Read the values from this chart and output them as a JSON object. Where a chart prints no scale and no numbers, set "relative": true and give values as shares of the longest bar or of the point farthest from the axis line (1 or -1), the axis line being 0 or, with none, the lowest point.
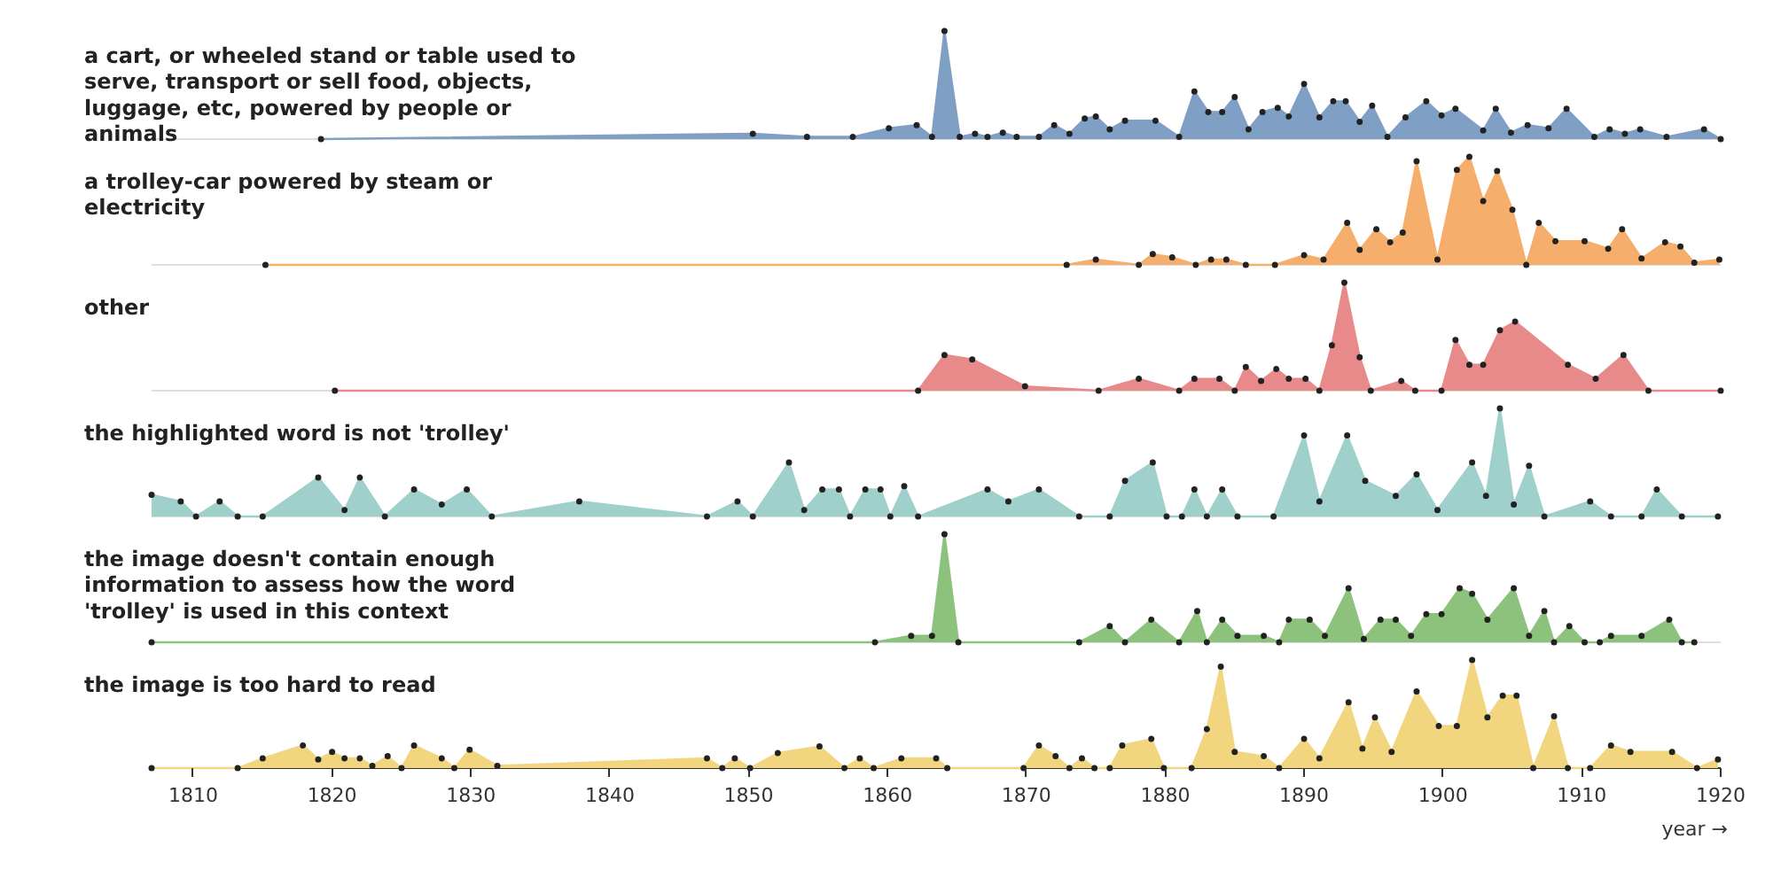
{
  "chart_data": [
    {
      "type": "area",
      "title": "a cart, or wheeled stand or table used to serve, transport or sell food, objects, luggage, etc, powered by people or animals",
      "relative": true,
      "color": "#7f9fc4",
      "marker": "circle",
      "tick_labels": false,
      "xlim": [
        1807,
        1920
      ],
      "x": [
        1819.2,
        1850.3,
        1854.2,
        1857.5,
        1860.1,
        1862.1,
        1863.2,
        1864.1,
        1865.2,
        1866.3,
        1867.2,
        1868.3,
        1869.3,
        1870.9,
        1872.0,
        1873.1,
        1874.2,
        1875.0,
        1876.0,
        1877.1,
        1879.3,
        1881.0,
        1882.1,
        1883.1,
        1884.1,
        1885.0,
        1886.0,
        1887.0,
        1888.1,
        1888.9,
        1890.0,
        1891.1,
        1892.1,
        1893.0,
        1894.0,
        1894.9,
        1896.0,
        1897.3,
        1898.8,
        1899.9,
        1900.9,
        1902.9,
        1903.8,
        1904.9,
        1906.1,
        1907.6,
        1908.9,
        1910.9,
        1912.0,
        1913.1,
        1914.2,
        1916.1,
        1918.8,
        1920
      ],
      "values": [
        0,
        0.05,
        0.02,
        0.02,
        0.1,
        0.13,
        0.02,
        1,
        0.02,
        0.05,
        0.02,
        0.06,
        0.02,
        0.02,
        0.13,
        0.05,
        0.19,
        0.21,
        0.09,
        0.17,
        0.17,
        0.02,
        0.44,
        0.25,
        0.25,
        0.39,
        0.09,
        0.25,
        0.29,
        0.21,
        0.51,
        0.2,
        0.35,
        0.35,
        0.16,
        0.31,
        0.02,
        0.2,
        0.35,
        0.22,
        0.28,
        0.08,
        0.28,
        0.06,
        0.13,
        0.1,
        0.28,
        0.02,
        0.09,
        0.05,
        0.09,
        0.02,
        0.09,
        0
      ]
    },
    {
      "type": "area",
      "title": "a trolley-car powered by steam or electricity",
      "relative": true,
      "color": "#f5ae6b",
      "marker": "circle",
      "tick_labels": false,
      "xlim": [
        1807,
        1920
      ],
      "x": [
        1815.2,
        1872.9,
        1875.0,
        1878.1,
        1879.1,
        1880.5,
        1882.2,
        1883.3,
        1884.4,
        1885.8,
        1887.9,
        1890.0,
        1891.4,
        1893.1,
        1894.0,
        1895.2,
        1896.2,
        1897.1,
        1898.1,
        1899.6,
        1901.0,
        1901.9,
        1902.9,
        1903.9,
        1905.0,
        1906.0,
        1906.9,
        1908.1,
        1910.2,
        1911.9,
        1912.9,
        1914.3,
        1916.0,
        1917.1,
        1918.1,
        1919.9
      ],
      "values": [
        0,
        0,
        0.05,
        0,
        0.1,
        0.07,
        0,
        0.05,
        0.05,
        0,
        0,
        0.09,
        0.05,
        0.39,
        0.14,
        0.33,
        0.21,
        0.3,
        0.96,
        0.05,
        0.88,
        1,
        0.59,
        0.87,
        0.51,
        0,
        0.39,
        0.22,
        0.22,
        0.15,
        0.33,
        0.06,
        0.21,
        0.17,
        0.02,
        0.05
      ]
    },
    {
      "type": "area",
      "title": "other",
      "relative": true,
      "color": "#e88a8a",
      "marker": "circle",
      "tick_labels": false,
      "xlim": [
        1807,
        1920
      ],
      "x": [
        1820.2,
        1862.2,
        1864.1,
        1866.1,
        1869.9,
        1875.2,
        1878.1,
        1881.0,
        1882.1,
        1883.9,
        1885.0,
        1885.8,
        1886.9,
        1888.0,
        1888.9,
        1890.1,
        1891.1,
        1892.0,
        1892.9,
        1894.0,
        1894.8,
        1897.0,
        1898.0,
        1899.9,
        1900.9,
        1901.9,
        1902.9,
        1904.1,
        1905.2,
        1909.0,
        1911.0,
        1913.0,
        1914.8,
        1920
      ],
      "values": [
        0,
        0,
        0.33,
        0.29,
        0.04,
        0,
        0.11,
        0,
        0.11,
        0.11,
        0,
        0.22,
        0.09,
        0.2,
        0.11,
        0.11,
        0,
        0.42,
        1,
        0.31,
        0,
        0.09,
        0,
        0,
        0.47,
        0.24,
        0.24,
        0.56,
        0.64,
        0.24,
        0.11,
        0.33,
        0,
        0
      ]
    },
    {
      "type": "area",
      "title": "the highlighted word is not 'trolley'",
      "relative": true,
      "color": "#9fd0cb",
      "marker": "circle",
      "tick_labels": false,
      "xlim": [
        1807,
        1920
      ],
      "x": [
        1807,
        1809.1,
        1810.2,
        1811.9,
        1813.2,
        1815,
        1819,
        1820.9,
        1822,
        1823.8,
        1825.9,
        1827.9,
        1829.7,
        1831.5,
        1837.8,
        1847,
        1849.2,
        1850.3,
        1852.9,
        1854,
        1855.3,
        1856.5,
        1857.3,
        1858.4,
        1859.5,
        1860.2,
        1861.2,
        1862.2,
        1867.2,
        1868.7,
        1870.9,
        1873.8,
        1876,
        1877.1,
        1879.1,
        1880.1,
        1881.2,
        1882.1,
        1883,
        1884.1,
        1885.2,
        1887.8,
        1890,
        1891.1,
        1893.1,
        1894.4,
        1896.6,
        1898.1,
        1899.6,
        1902.1,
        1903.1,
        1904.1,
        1905.1,
        1906.2,
        1907.3,
        1910.6,
        1912.1,
        1914.3,
        1915.4,
        1917.2,
        1919.8
      ],
      "values": [
        0.2,
        0.14,
        0,
        0.14,
        0,
        0,
        0.36,
        0.06,
        0.36,
        0,
        0.25,
        0.11,
        0.25,
        0,
        0.14,
        0,
        0.14,
        0,
        0.5,
        0.06,
        0.25,
        0.25,
        0,
        0.25,
        0.25,
        0,
        0.28,
        0,
        0.25,
        0.14,
        0.25,
        0,
        0,
        0.33,
        0.5,
        0,
        0,
        0.25,
        0,
        0.25,
        0,
        0,
        0.75,
        0.14,
        0.75,
        0.33,
        0.19,
        0.39,
        0.06,
        0.5,
        0.19,
        1,
        0.11,
        0.47,
        0,
        0.14,
        0,
        0,
        0.25,
        0,
        0
      ]
    },
    {
      "type": "area",
      "title": "the image doesn't contain enough information to assess how the word 'trolley' is used in this context",
      "relative": true,
      "color": "#8dc27c",
      "marker": "circle",
      "tick_labels": false,
      "xlim": [
        1807,
        1920
      ],
      "x": [
        1807,
        1859.1,
        1861.7,
        1863.2,
        1864.1,
        1865.1,
        1873.8,
        1876,
        1877.1,
        1879,
        1881,
        1882.3,
        1883,
        1884.1,
        1885.2,
        1887.1,
        1888.2,
        1888.9,
        1890.4,
        1891.5,
        1893.2,
        1894.3,
        1895.5,
        1896.6,
        1897.7,
        1898.8,
        1899.9,
        1901.2,
        1902.1,
        1903.2,
        1905.1,
        1906.2,
        1907.3,
        1908,
        1909.1,
        1910.2,
        1911.3,
        1912.1,
        1914.3,
        1916.3,
        1917.2,
        1918.1
      ],
      "values": [
        0,
        0,
        0.06,
        0.06,
        1,
        0,
        0,
        0.15,
        0,
        0.21,
        0,
        0.29,
        0,
        0.21,
        0.06,
        0.06,
        0,
        0.21,
        0.21,
        0.06,
        0.5,
        0.03,
        0.21,
        0.21,
        0.06,
        0.26,
        0.26,
        0.5,
        0.45,
        0.21,
        0.5,
        0.06,
        0.29,
        0,
        0.15,
        0,
        0,
        0.06,
        0.06,
        0.21,
        0,
        0
      ]
    },
    {
      "type": "area",
      "title": "the image is too hard to read",
      "relative": true,
      "color": "#f2d67f",
      "marker": "circle",
      "tick_labels": "x",
      "xlim": [
        1807,
        1920
      ],
      "xticks": [
        1810,
        1820,
        1830,
        1840,
        1850,
        1860,
        1870,
        1880,
        1890,
        1900,
        1910,
        1920
      ],
      "xlabel": "year →",
      "x": [
        1807,
        1813.2,
        1815,
        1817.9,
        1819,
        1820,
        1820.9,
        1822,
        1822.9,
        1824,
        1825,
        1825.9,
        1827.9,
        1828.8,
        1829.9,
        1831.9,
        1847,
        1848.1,
        1849,
        1850.1,
        1852.1,
        1855.1,
        1856.9,
        1858,
        1859,
        1861,
        1863.5,
        1864.3,
        1869.8,
        1870.9,
        1872.1,
        1873.1,
        1874,
        1874.9,
        1876,
        1876.9,
        1879,
        1879.9,
        1881.9,
        1883,
        1884,
        1885,
        1887.1,
        1888.2,
        1890,
        1891.1,
        1893.2,
        1894.2,
        1895.1,
        1896.3,
        1898.1,
        1899.7,
        1901,
        1902.1,
        1903.2,
        1904.3,
        1905.3,
        1906.5,
        1908,
        1909,
        1910.6,
        1912.1,
        1913.5,
        1916.5,
        1918.3,
        1919.8
      ],
      "values": [
        0,
        0,
        0.09,
        0.21,
        0.08,
        0.15,
        0.09,
        0.09,
        0.02,
        0.11,
        0,
        0.21,
        0.09,
        0,
        0.17,
        0.02,
        0.09,
        0,
        0.09,
        0,
        0.14,
        0.2,
        0,
        0.09,
        0,
        0.09,
        0.09,
        0,
        0,
        0.21,
        0.11,
        0,
        0.09,
        0,
        0,
        0.21,
        0.27,
        0,
        0,
        0.36,
        0.94,
        0.15,
        0.11,
        0,
        0.27,
        0.09,
        0.61,
        0.18,
        0.47,
        0.15,
        0.71,
        0.39,
        0.39,
        1,
        0.47,
        0.67,
        0.67,
        0,
        0.48,
        0,
        0,
        0.21,
        0.15,
        0.15,
        0,
        0.08
      ]
    }
  ]
}
